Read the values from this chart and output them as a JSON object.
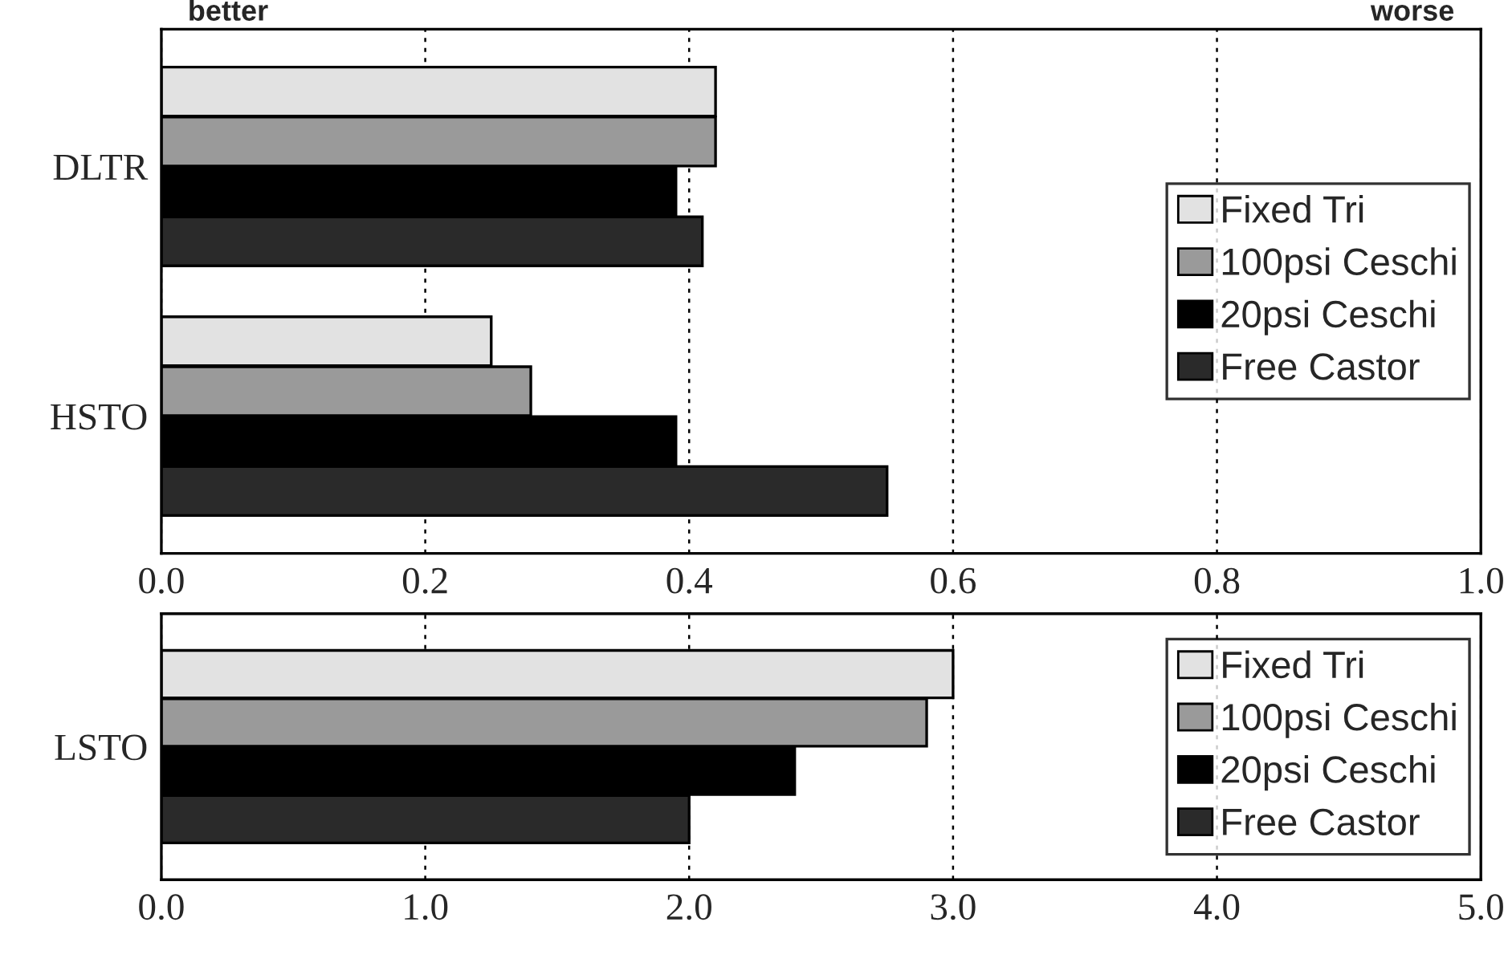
{
  "chart_data": [
    {
      "type": "bar",
      "orientation": "horizontal",
      "categories": [
        "DLTR",
        "HSTO"
      ],
      "series": [
        {
          "name": "Fixed Tri",
          "color": "#e2e2e2",
          "values": [
            0.42,
            0.25
          ]
        },
        {
          "name": "100psi Ceschi",
          "color": "#9a9a9a",
          "values": [
            0.42,
            0.28
          ]
        },
        {
          "name": "20psi Ceschi",
          "color": "#000000",
          "values": [
            0.39,
            0.39
          ]
        },
        {
          "name": "Free Castor",
          "color": "#2a2a2a",
          "values": [
            0.41,
            0.55
          ]
        }
      ],
      "xlim": [
        0,
        1.0
      ],
      "xticks": [
        {
          "value": 0,
          "label": "0.0"
        },
        0.2,
        0.4,
        0.6,
        0.8,
        {
          "value": 1.0,
          "label": "1.0"
        }
      ],
      "grid": "x",
      "legend": "right",
      "annotations": [
        "better",
        "worse"
      ]
    },
    {
      "type": "bar",
      "orientation": "horizontal",
      "categories": [
        "LSTO"
      ],
      "series": [
        {
          "name": "Fixed Tri",
          "color": "#e2e2e2",
          "values": [
            3.0
          ]
        },
        {
          "name": "100psi Ceschi",
          "color": "#9a9a9a",
          "values": [
            2.9
          ]
        },
        {
          "name": "20psi Ceschi",
          "color": "#000000",
          "values": [
            2.4
          ]
        },
        {
          "name": "Free Castor",
          "color": "#2a2a2a",
          "values": [
            2.0
          ]
        }
      ],
      "xlim": [
        0,
        5.0
      ],
      "xticks": [
        {
          "value": 0,
          "label": "0.0"
        },
        {
          "value": 1,
          "label": "1.0"
        },
        {
          "value": 2,
          "label": "2.0"
        },
        {
          "value": 3,
          "label": "3.0"
        },
        {
          "value": 4,
          "label": "4.0"
        },
        {
          "value": 5,
          "label": "5.0"
        }
      ],
      "grid": "x",
      "legend": "right"
    }
  ]
}
